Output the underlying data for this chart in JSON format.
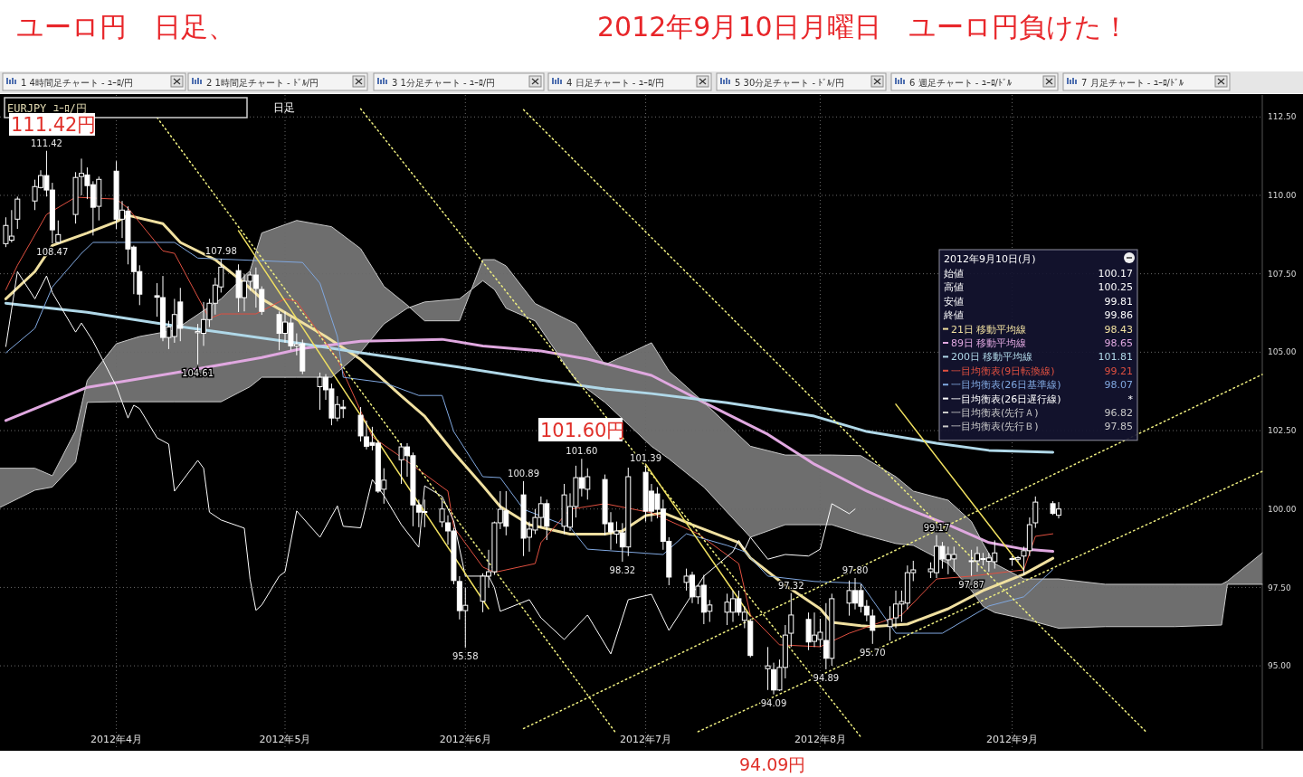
{
  "chart_data": {
    "type": "candlestick",
    "title": "ユーロ円　日足、",
    "subtitle": "2012年9月10日月曜日　ユーロ円負けた！",
    "color": "#ffffff",
    "xlim": [
      "2012-03-13",
      "2012-10-16"
    ],
    "ylim": [
      92.35,
      113.2
    ],
    "xticks": [
      {
        "value": "2012-04-02",
        "label": "2012年4月"
      },
      {
        "value": "2012-05-01",
        "label": "2012年5月"
      },
      {
        "value": "2012-06-01",
        "label": "2012年6月"
      },
      {
        "value": "2012-07-02",
        "label": "2012年7月"
      },
      {
        "value": "2012-08-01",
        "label": "2012年8月"
      },
      {
        "value": "2012-09-03",
        "label": "2012年9月"
      }
    ],
    "yticks": [
      {
        "value": 95,
        "label": "95.00"
      },
      {
        "value": 97.5,
        "label": "97.50"
      },
      {
        "value": 100,
        "label": "100.00"
      },
      {
        "value": 102.5,
        "label": "102.50"
      },
      {
        "value": 105,
        "label": "105.00"
      },
      {
        "value": 107.5,
        "label": "107.50"
      },
      {
        "value": 110,
        "label": "110.00"
      },
      {
        "value": 112.5,
        "label": "112.50"
      }
    ],
    "grid": true,
    "legend": "right",
    "legend_title": "2012年9月10日(月)",
    "x": [
      "2012-03-14",
      "2012-03-15",
      "2012-03-16",
      "2012-03-19",
      "2012-03-20",
      "2012-03-21",
      "2012-03-22",
      "2012-03-23",
      "2012-03-26",
      "2012-03-27",
      "2012-03-28",
      "2012-03-29",
      "2012-03-30",
      "2012-04-02",
      "2012-04-03",
      "2012-04-04",
      "2012-04-05",
      "2012-04-06",
      "2012-04-09",
      "2012-04-10",
      "2012-04-11",
      "2012-04-12",
      "2012-04-13",
      "2012-04-16",
      "2012-04-17",
      "2012-04-18",
      "2012-04-19",
      "2012-04-20",
      "2012-04-23",
      "2012-04-24",
      "2012-04-25",
      "2012-04-26",
      "2012-04-27",
      "2012-04-30",
      "2012-05-01",
      "2012-05-02",
      "2012-05-03",
      "2012-05-04",
      "2012-05-07",
      "2012-05-08",
      "2012-05-09",
      "2012-05-10",
      "2012-05-11",
      "2012-05-14",
      "2012-05-15",
      "2012-05-16",
      "2012-05-17",
      "2012-05-18",
      "2012-05-21",
      "2012-05-22",
      "2012-05-23",
      "2012-05-24",
      "2012-05-25",
      "2012-05-28",
      "2012-05-29",
      "2012-05-30",
      "2012-05-31",
      "2012-06-01",
      "2012-06-04",
      "2012-06-05",
      "2012-06-06",
      "2012-06-07",
      "2012-06-08",
      "2012-06-11",
      "2012-06-12",
      "2012-06-13",
      "2012-06-14",
      "2012-06-15",
      "2012-06-18",
      "2012-06-19",
      "2012-06-20",
      "2012-06-21",
      "2012-06-22",
      "2012-06-25",
      "2012-06-26",
      "2012-06-27",
      "2012-06-28",
      "2012-06-29",
      "2012-07-02",
      "2012-07-03",
      "2012-07-04",
      "2012-07-05",
      "2012-07-06",
      "2012-07-09",
      "2012-07-10",
      "2012-07-11",
      "2012-07-12",
      "2012-07-13",
      "2012-07-16",
      "2012-07-17",
      "2012-07-18",
      "2012-07-19",
      "2012-07-20",
      "2012-07-23",
      "2012-07-24",
      "2012-07-25",
      "2012-07-26",
      "2012-07-27",
      "2012-07-30",
      "2012-07-31",
      "2012-08-01",
      "2012-08-02",
      "2012-08-03",
      "2012-08-06",
      "2012-08-07",
      "2012-08-08",
      "2012-08-09",
      "2012-08-10",
      "2012-08-13",
      "2012-08-14",
      "2012-08-15",
      "2012-08-16",
      "2012-08-17",
      "2012-08-20",
      "2012-08-21",
      "2012-08-22",
      "2012-08-23",
      "2012-08-24",
      "2012-08-27",
      "2012-08-28",
      "2012-08-29",
      "2012-08-30",
      "2012-08-31",
      "2012-09-03",
      "2012-09-04",
      "2012-09-05",
      "2012-09-06",
      "2012-09-07",
      "2012-09-10",
      "2012-09-11"
    ],
    "ohlc": [
      [
        108.46,
        109.3,
        108.35,
        109.04
      ],
      [
        108.57,
        109.53,
        108.5,
        108.7
      ],
      [
        109.24,
        109.96,
        108.93,
        109.88
      ],
      [
        109.82,
        110.5,
        109.53,
        110.28
      ],
      [
        110.25,
        110.8,
        110.22,
        110.63
      ],
      [
        110.63,
        111.42,
        109.96,
        110.17
      ],
      [
        110.17,
        110.4,
        108.47,
        108.9
      ],
      [
        108.5,
        109.2,
        108.47,
        108.75
      ],
      [
        109.39,
        110.74,
        109.1,
        110.57
      ],
      [
        110.6,
        111.17,
        110.0,
        110.7
      ],
      [
        110.65,
        110.89,
        109.88,
        110.31
      ],
      [
        110.34,
        110.45,
        108.72,
        109.62
      ],
      [
        109.65,
        110.6,
        109.2,
        110.51
      ],
      [
        110.77,
        111.09,
        108.93,
        109.24
      ],
      [
        109.24,
        109.82,
        108.64,
        109.53
      ],
      [
        109.5,
        109.65,
        107.8,
        108.29
      ],
      [
        108.35,
        108.4,
        106.85,
        107.57
      ],
      [
        107.57,
        107.77,
        106.5,
        106.85
      ],
      [
        106.8,
        107.2,
        106.13,
        106.75
      ],
      [
        106.74,
        107.43,
        105.35,
        105.47
      ],
      [
        105.47,
        106.0,
        105.1,
        105.8
      ],
      [
        105.5,
        106.7,
        105.3,
        106.2
      ],
      [
        106.6,
        107.05,
        105.35,
        105.76
      ],
      [
        105.62,
        105.9,
        104.61,
        105.66
      ],
      [
        105.6,
        106.6,
        105.2,
        106.04
      ],
      [
        106.04,
        106.7,
        105.8,
        106.56
      ],
      [
        106.56,
        107.37,
        106.2,
        107.14
      ],
      [
        107.08,
        107.98,
        106.9,
        107.71
      ],
      [
        107.6,
        107.8,
        106.28,
        106.74
      ],
      [
        106.74,
        107.5,
        106.3,
        107.26
      ],
      [
        107.26,
        107.57,
        106.96,
        107.46
      ],
      [
        107.46,
        107.7,
        106.42,
        107.03
      ],
      [
        107.0,
        107.1,
        106.19,
        106.3
      ],
      [
        106.2,
        106.3,
        105.06,
        105.6
      ],
      [
        105.6,
        106.3,
        105.3,
        105.96
      ],
      [
        105.93,
        106.1,
        105.06,
        105.2
      ],
      [
        105.2,
        105.6,
        104.9,
        105.25
      ],
      [
        105.27,
        105.4,
        104.3,
        104.4
      ],
      [
        103.9,
        104.35,
        103.16,
        104.2
      ],
      [
        104.2,
        104.3,
        103.48,
        103.8
      ],
      [
        103.83,
        104.0,
        102.67,
        102.9
      ],
      [
        102.9,
        103.6,
        102.8,
        103.33
      ],
      [
        103.25,
        103.48,
        102.9,
        103.2
      ],
      [
        102.99,
        103.25,
        102.15,
        102.33
      ],
      [
        102.3,
        102.82,
        101.9,
        102.0
      ],
      [
        102.12,
        102.62,
        101.87,
        102.03
      ],
      [
        102.1,
        102.2,
        100.51,
        100.57
      ],
      [
        100.63,
        101.3,
        100.17,
        100.92
      ],
      [
        101.57,
        102.1,
        100.8,
        101.98
      ],
      [
        101.98,
        102.1,
        101.03,
        101.7
      ],
      [
        101.7,
        101.8,
        99.45,
        100.13
      ],
      [
        100.13,
        100.3,
        99.42,
        99.9
      ],
      [
        99.92,
        100.3,
        99.42,
        99.9
      ],
      [
        99.59,
        100.3,
        99.42,
        100.0
      ],
      [
        99.56,
        99.8,
        98.86,
        99.3
      ],
      [
        99.3,
        99.4,
        97.6,
        97.72
      ],
      [
        97.69,
        97.86,
        96.48,
        96.76
      ],
      [
        96.76,
        97.49,
        95.58,
        96.93
      ],
      [
        97.06,
        97.95,
        96.71,
        97.86
      ],
      [
        97.86,
        98.7,
        97.49,
        98.0
      ],
      [
        98.0,
        99.6,
        97.9,
        99.56
      ],
      [
        99.56,
        100.57,
        99.36,
        99.99
      ],
      [
        99.94,
        100.57,
        99.16,
        99.45
      ],
      [
        100.45,
        100.89,
        98.5,
        99.07
      ],
      [
        99.1,
        99.6,
        98.64,
        99.36
      ],
      [
        99.33,
        100.0,
        99.2,
        99.73
      ],
      [
        99.73,
        100.4,
        99.4,
        100.17
      ],
      [
        100.17,
        100.3,
        99.01,
        99.45
      ],
      [
        99.45,
        100.8,
        99.2,
        100.45
      ],
      [
        99.42,
        100.5,
        99.3,
        100.08
      ],
      [
        100.08,
        101.38,
        99.73,
        101.0
      ],
      [
        101.0,
        101.6,
        100.4,
        100.66
      ],
      [
        100.63,
        101.3,
        100.3,
        101.03
      ],
      [
        100.94,
        101.1,
        99.16,
        99.53
      ],
      [
        99.56,
        99.9,
        98.7,
        99.27
      ],
      [
        99.2,
        99.6,
        98.9,
        99.3
      ],
      [
        99.24,
        99.55,
        98.32,
        98.79
      ],
      [
        98.79,
        101.32,
        98.5,
        101.03
      ],
      [
        101.17,
        101.39,
        99.6,
        99.93
      ],
      [
        100.57,
        100.8,
        99.6,
        99.93
      ],
      [
        100.48,
        100.7,
        99.7,
        99.99
      ],
      [
        100.0,
        100.3,
        98.7,
        98.97
      ],
      [
        98.97,
        99.1,
        97.57,
        97.83
      ],
      [
        97.66,
        98.1,
        97.4,
        97.86
      ],
      [
        97.89,
        98.0,
        97.0,
        97.2
      ],
      [
        97.2,
        97.6,
        96.97,
        97.54
      ],
      [
        97.57,
        97.9,
        96.33,
        96.71
      ],
      [
        96.74,
        97.1,
        96.4,
        96.94
      ],
      [
        96.71,
        97.3,
        96.3,
        97.03
      ],
      [
        96.71,
        97.4,
        96.4,
        97.14
      ],
      [
        97.14,
        97.4,
        96.6,
        96.71
      ],
      [
        96.45,
        96.9,
        96.2,
        96.71
      ],
      [
        96.42,
        96.5,
        95.27,
        95.33
      ],
      [
        94.91,
        95.6,
        94.23,
        95.0
      ],
      [
        94.88,
        95.1,
        94.09,
        94.23
      ],
      [
        94.23,
        95.2,
        94.2,
        94.95
      ],
      [
        94.95,
        96.3,
        94.6,
        95.98
      ],
      [
        96.04,
        97.32,
        95.6,
        96.62
      ],
      [
        96.48,
        96.7,
        95.5,
        95.76
      ],
      [
        95.78,
        96.7,
        95.6,
        95.98
      ],
      [
        95.84,
        96.5,
        95.6,
        96.07
      ],
      [
        95.81,
        97.0,
        94.89,
        95.24
      ],
      [
        95.24,
        97.3,
        95.0,
        97.14
      ],
      [
        97.0,
        97.72,
        96.6,
        97.4
      ],
      [
        97.4,
        97.8,
        96.8,
        97.0
      ],
      [
        97.4,
        97.6,
        96.7,
        96.9
      ],
      [
        96.9,
        97.1,
        96.42,
        96.62
      ],
      [
        96.59,
        96.8,
        95.7,
        96.13
      ],
      [
        96.25,
        96.9,
        95.8,
        96.48
      ],
      [
        96.53,
        97.4,
        96.2,
        96.97
      ],
      [
        96.97,
        97.4,
        96.4,
        97.05
      ],
      [
        97.0,
        98.2,
        96.8,
        97.97
      ],
      [
        97.97,
        98.35,
        97.7,
        98.06
      ],
      [
        98.0,
        98.3,
        97.8,
        98.09
      ],
      [
        97.97,
        99.17,
        97.8,
        98.81
      ],
      [
        98.81,
        98.95,
        98.1,
        98.41
      ],
      [
        98.38,
        98.8,
        97.92,
        98.55
      ],
      [
        98.41,
        98.8,
        98.0,
        98.55
      ],
      [
        98.35,
        98.7,
        97.87,
        98.33
      ],
      [
        98.35,
        98.8,
        98.0,
        98.58
      ],
      [
        98.42,
        98.6,
        98.2,
        98.4
      ],
      [
        98.33,
        98.6,
        98.0,
        98.44
      ],
      [
        98.32,
        99.0,
        98.1,
        98.6
      ],
      [
        98.42,
        98.5,
        98.2,
        98.4
      ],
      [
        98.4,
        98.5,
        98.3,
        98.45
      ],
      [
        98.5,
        98.8,
        97.9,
        98.67
      ],
      [
        98.67,
        99.73,
        98.5,
        99.5
      ],
      [
        99.56,
        100.4,
        99.4,
        100.22
      ],
      [
        100.17,
        100.25,
        99.81,
        99.86
      ],
      [
        99.8,
        100.22,
        99.7,
        100.0
      ]
    ],
    "series": [
      {
        "type": "line",
        "name": "21日 移動平均線 98.43",
        "color": "#f0e0a0",
        "x": [
          "2012-03-14",
          "2012-03-19",
          "2012-03-22",
          "2012-03-28",
          "2012-04-02",
          "2012-04-04",
          "2012-04-10",
          "2012-04-13",
          "2012-04-19",
          "2012-04-24",
          "2012-04-27",
          "2012-05-03",
          "2012-05-08",
          "2012-05-14",
          "2012-05-21",
          "2012-05-25",
          "2012-05-30",
          "2012-06-04",
          "2012-06-07",
          "2012-06-12",
          "2012-06-19",
          "2012-06-25",
          "2012-06-28",
          "2012-07-02",
          "2012-07-05",
          "2012-07-10",
          "2012-07-18",
          "2012-07-20",
          "2012-07-26",
          "2012-08-01",
          "2012-08-03",
          "2012-08-08",
          "2012-08-10",
          "2012-08-16",
          "2012-08-23",
          "2012-08-29",
          "2012-09-05",
          "2012-09-10"
        ],
        "values": [
          106.7,
          107.57,
          108.4,
          108.8,
          109.16,
          109.36,
          109.1,
          108.5,
          107.95,
          107.2,
          106.7,
          106.05,
          105.5,
          104.77,
          103.6,
          102.96,
          101.8,
          100.74,
          100.08,
          99.5,
          99.2,
          99.2,
          99.3,
          99.79,
          99.88,
          99.5,
          98.93,
          98.44,
          97.57,
          96.82,
          96.39,
          96.28,
          96.25,
          96.33,
          96.82,
          97.4,
          97.92,
          98.43
        ]
      },
      {
        "type": "line",
        "name": "89日 移動平均線 98.65",
        "color": "#e0a8e0",
        "x": [
          "2012-03-14",
          "2012-03-28",
          "2012-04-12",
          "2012-04-27",
          "2012-05-04",
          "2012-05-14",
          "2012-05-28",
          "2012-06-04",
          "2012-06-14",
          "2012-06-22",
          "2012-07-03",
          "2012-07-12",
          "2012-07-23",
          "2012-07-31",
          "2012-08-09",
          "2012-08-15",
          "2012-08-23",
          "2012-08-30",
          "2012-09-05",
          "2012-09-10"
        ],
        "values": [
          102.82,
          103.88,
          104.34,
          104.83,
          105.12,
          105.35,
          105.41,
          105.2,
          105.04,
          104.78,
          104.26,
          103.4,
          102.38,
          101.43,
          100.57,
          100.08,
          99.5,
          98.93,
          98.72,
          98.65
        ]
      },
      {
        "type": "line",
        "name": "200日 移動平均線 101.81",
        "color": "#b0d8e8",
        "x": [
          "2012-03-14",
          "2012-03-28",
          "2012-04-12",
          "2012-05-04",
          "2012-05-14",
          "2012-05-30",
          "2012-06-14",
          "2012-06-25",
          "2012-07-03",
          "2012-07-16",
          "2012-07-31",
          "2012-08-09",
          "2012-08-21",
          "2012-08-30",
          "2012-09-10"
        ],
        "values": [
          106.56,
          106.27,
          105.84,
          105.27,
          104.98,
          104.55,
          104.11,
          103.83,
          103.68,
          103.39,
          102.96,
          102.47,
          102.1,
          101.87,
          101.81
        ]
      },
      {
        "type": "line",
        "name": "一目均衡表(9日転換線) 99.21",
        "color": "#e05040",
        "x": [
          "2012-03-14",
          "2012-03-16",
          "2012-03-21",
          "2012-03-26",
          "2012-04-02",
          "2012-04-04",
          "2012-04-10",
          "2012-04-12",
          "2012-04-18",
          "2012-04-20",
          "2012-04-26",
          "2012-05-01",
          "2012-05-03",
          "2012-05-10",
          "2012-05-16",
          "2012-05-22",
          "2012-05-29",
          "2012-05-30",
          "2012-06-04",
          "2012-06-06",
          "2012-06-13",
          "2012-06-14",
          "2012-06-19",
          "2012-06-25",
          "2012-07-03",
          "2012-07-11",
          "2012-07-18",
          "2012-07-20",
          "2012-07-25",
          "2012-08-01",
          "2012-08-06",
          "2012-08-15",
          "2012-08-21",
          "2012-08-27",
          "2012-09-05",
          "2012-09-07",
          "2012-09-10"
        ],
        "values": [
          106.99,
          107.77,
          109.39,
          109.94,
          109.88,
          109.59,
          108.23,
          108.15,
          106.07,
          106.22,
          106.22,
          106.7,
          106.62,
          104.78,
          102.3,
          101.52,
          100.57,
          99.42,
          98.15,
          97.98,
          98.26,
          98.93,
          99.99,
          100.17,
          99.88,
          99.21,
          98.26,
          96.62,
          95.67,
          95.61,
          96.04,
          96.62,
          97.77,
          97.86,
          98.06,
          99.13,
          99.21
        ]
      },
      {
        "type": "line",
        "name": "一目均衡表(26日基準線) 98.07",
        "color": "#80a8e0",
        "x": [
          "2012-03-14",
          "2012-03-19",
          "2012-03-22",
          "2012-03-27",
          "2012-03-29",
          "2012-04-12",
          "2012-04-16",
          "2012-05-04",
          "2012-05-07",
          "2012-05-10",
          "2012-05-11",
          "2012-05-18",
          "2012-05-24",
          "2012-05-28",
          "2012-05-30",
          "2012-06-04",
          "2012-06-07",
          "2012-06-11",
          "2012-06-19",
          "2012-06-22",
          "2012-07-05",
          "2012-07-09",
          "2012-07-16",
          "2012-07-19",
          "2012-07-23",
          "2012-07-31",
          "2012-08-08",
          "2012-08-14",
          "2012-08-22",
          "2012-08-30",
          "2012-09-05",
          "2012-09-10"
        ],
        "values": [
          104.98,
          105.76,
          107.08,
          108.15,
          108.5,
          108.5,
          108.0,
          107.86,
          107.2,
          105.5,
          104.2,
          104.03,
          103.62,
          103.62,
          102.47,
          101.03,
          101.0,
          99.99,
          99.42,
          98.72,
          98.55,
          99.21,
          98.84,
          98.64,
          97.86,
          97.69,
          97.63,
          96.04,
          96.04,
          96.91,
          97.2,
          98.07
        ]
      },
      {
        "type": "line",
        "name": "一目均衡表(26日遅行線)",
        "color": "#ffffff",
        "x": [
          "2012-03-14",
          "2012-03-16",
          "2012-03-19",
          "2012-03-21",
          "2012-03-22",
          "2012-03-26",
          "2012-03-27",
          "2012-03-29",
          "2012-04-02",
          "2012-04-04",
          "2012-04-05",
          "2012-04-06",
          "2012-04-09",
          "2012-04-11",
          "2012-04-12",
          "2012-04-16",
          "2012-04-17",
          "2012-04-18",
          "2012-04-20",
          "2012-04-24",
          "2012-04-25",
          "2012-04-26",
          "2012-04-27",
          "2012-04-30",
          "2012-05-01",
          "2012-05-03",
          "2012-05-07",
          "2012-05-10",
          "2012-05-11",
          "2012-05-14",
          "2012-05-16",
          "2012-05-18",
          "2012-05-21",
          "2012-05-24",
          "2012-05-25",
          "2012-05-28",
          "2012-05-30",
          "2012-06-01",
          "2012-06-05",
          "2012-06-06",
          "2012-06-07",
          "2012-06-12",
          "2012-06-14",
          "2012-06-18",
          "2012-06-22",
          "2012-06-26",
          "2012-06-29",
          "2012-07-03",
          "2012-07-06",
          "2012-07-12",
          "2012-07-17",
          "2012-07-18",
          "2012-07-19",
          "2012-07-20",
          "2012-07-23",
          "2012-07-26",
          "2012-07-30",
          "2012-08-01",
          "2012-08-03",
          "2012-08-06",
          "2012-08-07"
        ],
        "values": [
          105.18,
          107.57,
          106.7,
          107.43,
          106.9,
          105.64,
          105.93,
          105.35,
          103.91,
          102.9,
          103.31,
          103.2,
          102.27,
          102.07,
          100.57,
          101.55,
          101.3,
          99.9,
          99.65,
          99.39,
          97.75,
          96.77,
          96.94,
          97.86,
          98.0,
          99.94,
          99.1,
          100.1,
          99.45,
          99.4,
          100.94,
          100.43,
          99.5,
          98.78,
          100.74,
          100.4,
          99.62,
          97.86,
          97.86,
          97.49,
          96.74,
          97.11,
          96.53,
          95.84,
          96.62,
          95.38,
          97.11,
          97.28,
          96.13,
          97.86,
          98.64,
          99.0,
          98.7,
          99.1,
          98.4,
          98.55,
          98.5,
          98.72,
          100.17,
          99.85,
          100.0
        ]
      },
      {
        "type": "line",
        "name": "一目均衡表(先行Ａ) 96.82",
        "color": "#c8c8c8",
        "x": [
          "2012-03-13",
          "2012-03-19",
          "2012-03-22",
          "2012-03-26",
          "2012-03-28",
          "2012-04-02",
          "2012-04-06",
          "2012-04-12",
          "2012-04-20",
          "2012-04-25",
          "2012-04-27",
          "2012-05-03",
          "2012-05-09",
          "2012-05-14",
          "2012-05-18",
          "2012-05-22",
          "2012-05-25",
          "2012-05-31",
          "2012-06-04",
          "2012-06-06",
          "2012-06-08",
          "2012-06-13",
          "2012-06-20",
          "2012-06-25",
          "2012-07-03",
          "2012-07-06",
          "2012-07-12",
          "2012-07-20",
          "2012-07-26",
          "2012-08-03",
          "2012-08-08",
          "2012-08-14",
          "2012-08-17",
          "2012-08-23",
          "2012-08-27",
          "2012-08-29",
          "2012-08-31",
          "2012-09-05",
          "2012-09-11",
          "2012-09-19",
          "2012-10-01",
          "2012-10-09",
          "2012-10-10",
          "2012-10-16"
        ],
        "values": [
          101.3,
          101.3,
          101.06,
          102.5,
          104.1,
          105.27,
          105.5,
          105.7,
          106.7,
          107.6,
          108.8,
          109.2,
          109.0,
          108.3,
          107.1,
          106.5,
          106.0,
          106.0,
          107.95,
          107.95,
          107.75,
          106.55,
          105.9,
          104.6,
          105.3,
          104.4,
          103.4,
          102.0,
          101.72,
          101.72,
          101.7,
          101.03,
          100.57,
          100.28,
          99.6,
          98.9,
          98.26,
          97.77,
          97.77,
          97.6,
          97.6,
          97.6,
          97.7,
          98.6
        ],
        "lower": [
          100.05,
          100.6,
          100.7,
          101.5,
          103.4,
          103.42,
          103.42,
          103.42,
          103.42,
          103.9,
          104.2,
          104.2,
          104.2,
          105.0,
          105.9,
          106.4,
          106.6,
          106.7,
          107.28,
          107.0,
          106.4,
          106.0,
          104.1,
          103.4,
          102.0,
          101.6,
          100.7,
          99.1,
          99.5,
          99.5,
          99.2,
          98.9,
          98.84,
          98.26,
          97.4,
          96.9,
          96.7,
          96.5,
          96.2,
          96.25,
          96.25,
          96.3,
          97.6,
          97.6
        ],
        "upper": [
          101.3,
          101.3,
          101.06,
          102.5,
          104.1,
          105.27,
          105.5,
          105.7,
          106.7,
          107.6,
          108.8,
          109.2,
          109.0,
          108.3,
          107.1,
          106.5,
          106.0,
          106.0,
          107.95,
          107.95,
          107.75,
          106.55,
          105.9,
          104.6,
          105.3,
          104.4,
          103.4,
          102.0,
          101.72,
          101.72,
          101.7,
          101.03,
          100.57,
          100.28,
          99.6,
          98.9,
          98.26,
          97.77,
          97.77,
          97.6,
          97.6,
          97.6,
          97.7,
          98.6
        ]
      },
      {
        "type": "line",
        "name": "一目均衡表(先行Ｂ) 97.85",
        "color": "#c8c8c8",
        "x": [
          "2012-03-13",
          "2012-03-19",
          "2012-03-22",
          "2012-03-26",
          "2012-03-28",
          "2012-04-02",
          "2012-04-06",
          "2012-04-12",
          "2012-04-20",
          "2012-04-25",
          "2012-04-27",
          "2012-05-03",
          "2012-05-09",
          "2012-05-14",
          "2012-05-18",
          "2012-05-22",
          "2012-05-25",
          "2012-05-31",
          "2012-06-04",
          "2012-06-06",
          "2012-06-08",
          "2012-06-13",
          "2012-06-20",
          "2012-06-25",
          "2012-07-03",
          "2012-07-06",
          "2012-07-12",
          "2012-07-20",
          "2012-07-26",
          "2012-08-03",
          "2012-08-08",
          "2012-08-14",
          "2012-08-17",
          "2012-08-23",
          "2012-08-27",
          "2012-08-29",
          "2012-08-31",
          "2012-09-05",
          "2012-09-11",
          "2012-09-19",
          "2012-10-01",
          "2012-10-09",
          "2012-10-10",
          "2012-10-16"
        ],
        "values": [
          100.05,
          100.6,
          100.7,
          101.5,
          103.4,
          103.42,
          103.42,
          103.42,
          103.42,
          103.9,
          104.2,
          104.2,
          104.2,
          105.0,
          105.9,
          106.4,
          106.6,
          106.7,
          107.28,
          107.0,
          106.4,
          106.0,
          104.1,
          103.4,
          102.0,
          101.6,
          100.7,
          99.1,
          99.5,
          99.5,
          99.2,
          98.9,
          98.84,
          98.26,
          97.4,
          96.9,
          96.7,
          96.5,
          96.2,
          96.25,
          96.25,
          96.3,
          97.6,
          97.6
        ]
      },
      {
        "type": "line",
        "color": "#f0f080",
        "line_style": "dotted",
        "x": [
          "2012-04-09",
          "2012-06-27"
        ],
        "values": [
          112.48,
          92.83
        ]
      },
      {
        "type": "line",
        "color": "#f0f080",
        "line_style": "dotted",
        "x": [
          "2012-05-14",
          "2012-08-08"
        ],
        "values": [
          112.76,
          92.73
        ]
      },
      {
        "type": "line",
        "color": "#f0f080",
        "line_style": "dotted",
        "x": [
          "2012-06-11",
          "2012-09-26"
        ],
        "values": [
          112.73,
          92.9
        ]
      },
      {
        "type": "line",
        "color": "#f0f080",
        "line_style": "dotted",
        "x": [
          "2012-06-11",
          "2012-10-16"
        ],
        "values": [
          93.0,
          104.29
        ]
      },
      {
        "type": "line",
        "color": "#f0f080",
        "line_style": "dotted",
        "x": [
          "2012-07-11",
          "2012-10-16"
        ],
        "values": [
          92.9,
          101.2
        ]
      },
      {
        "type": "line",
        "color": "#f0e060",
        "x": [
          "2012-04-23",
          "2012-06-05"
        ],
        "values": [
          108.87,
          96.82
        ]
      },
      {
        "type": "line",
        "color": "#f0e060",
        "x": [
          "2012-07-02",
          "2012-07-20"
        ],
        "values": [
          101.43,
          96.59
        ]
      },
      {
        "type": "line",
        "color": "#f0e060",
        "x": [
          "2012-08-14",
          "2012-09-05"
        ],
        "values": [
          103.34,
          98.06
        ]
      }
    ],
    "annotations": [
      "1 4時間足チャート - ﾕｰﾛ/円",
      "2 1時間足チャート - ﾄﾞﾙ/円",
      "3 1分足チャート - ﾕｰﾛ/円",
      "4 日足チャート - ﾕｰﾛ/円",
      "5 30分足チャート - ﾄﾞﾙ/円",
      "6 週足チャート - ﾕｰﾛ/ﾄﾞﾙ",
      "7 月足チャート - ﾕｰﾛ/ﾄﾞﾙ",
      "EURJPY ﾕｰﾛ/円",
      "日足",
      "始値 100.17",
      "高値 100.25",
      "安値 99.81",
      "終値 99.86",
      "111.42円",
      "101.60円",
      "94.09円",
      "*",
      {
        "text": "111.42",
        "x": "2012-03-21",
        "y": 111.42
      },
      {
        "text": "108.47",
        "x": "2012-03-22",
        "y": 108.47
      },
      {
        "text": "107.98",
        "x": "2012-04-20",
        "y": 107.98
      },
      {
        "text": "104.61",
        "x": "2012-04-16",
        "y": 104.61
      },
      {
        "text": "95.58",
        "x": "2012-06-01",
        "y": 95.58
      },
      {
        "text": "100.89",
        "x": "2012-06-11",
        "y": 100.89
      },
      {
        "text": "101.60",
        "x": "2012-06-21",
        "y": 101.6
      },
      {
        "text": "98.32",
        "x": "2012-06-28",
        "y": 98.32
      },
      {
        "text": "101.39",
        "x": "2012-07-02",
        "y": 101.39
      },
      {
        "text": "97.32",
        "x": "2012-07-27",
        "y": 97.32
      },
      {
        "text": "94.09",
        "x": "2012-07-24",
        "y": 94.09
      },
      {
        "text": "94.89",
        "x": "2012-08-02",
        "y": 94.89
      },
      {
        "text": "97.80",
        "x": "2012-08-07",
        "y": 97.8
      },
      {
        "text": "95.70",
        "x": "2012-08-10",
        "y": 95.7
      },
      {
        "text": "99.17",
        "x": "2012-08-21",
        "y": 99.17
      },
      {
        "text": "97.87",
        "x": "2012-08-27",
        "y": 97.87
      }
    ]
  }
}
